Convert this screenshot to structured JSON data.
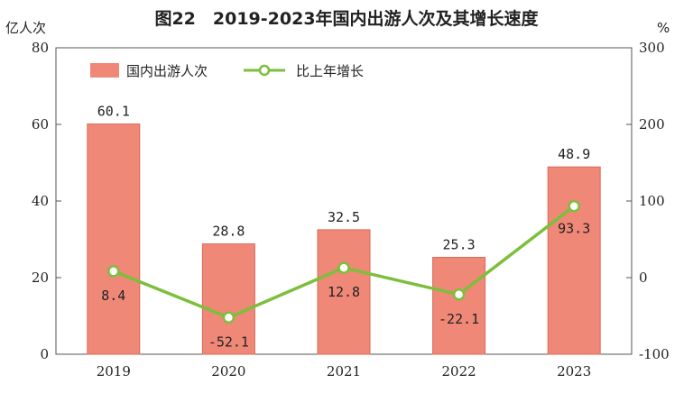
{
  "chart_data": {
    "type": "bar",
    "title": "图22　2019-2023年国内出游人次及其增长速度",
    "categories": [
      "2019",
      "2020",
      "2021",
      "2022",
      "2023"
    ],
    "series": [
      {
        "name": "国内出游人次",
        "type": "bar",
        "axis": "left",
        "values": [
          60.1,
          28.8,
          32.5,
          25.3,
          48.9
        ],
        "labels": [
          "60.1",
          "28.8",
          "32.5",
          "25.3",
          "48.9"
        ]
      },
      {
        "name": "比上年增长",
        "type": "line",
        "axis": "right",
        "values": [
          8.4,
          -52.1,
          12.8,
          -22.1,
          93.3
        ],
        "labels": [
          "8.4",
          "-52.1",
          "12.8",
          "-22.1",
          "93.3"
        ]
      }
    ],
    "left_axis": {
      "unit": "亿人次",
      "ylim": [
        0,
        80
      ],
      "ticks": [
        "0",
        "20",
        "40",
        "60",
        "80"
      ]
    },
    "right_axis": {
      "unit": "%",
      "ylim": [
        -100,
        300
      ],
      "ticks": [
        "-100",
        "0",
        "100",
        "200",
        "300"
      ]
    },
    "legend_position": "top-left",
    "grid": false,
    "colors": {
      "bar": "#f08878",
      "line": "#7cbf3c",
      "marker_fill": "#ffffff"
    }
  }
}
